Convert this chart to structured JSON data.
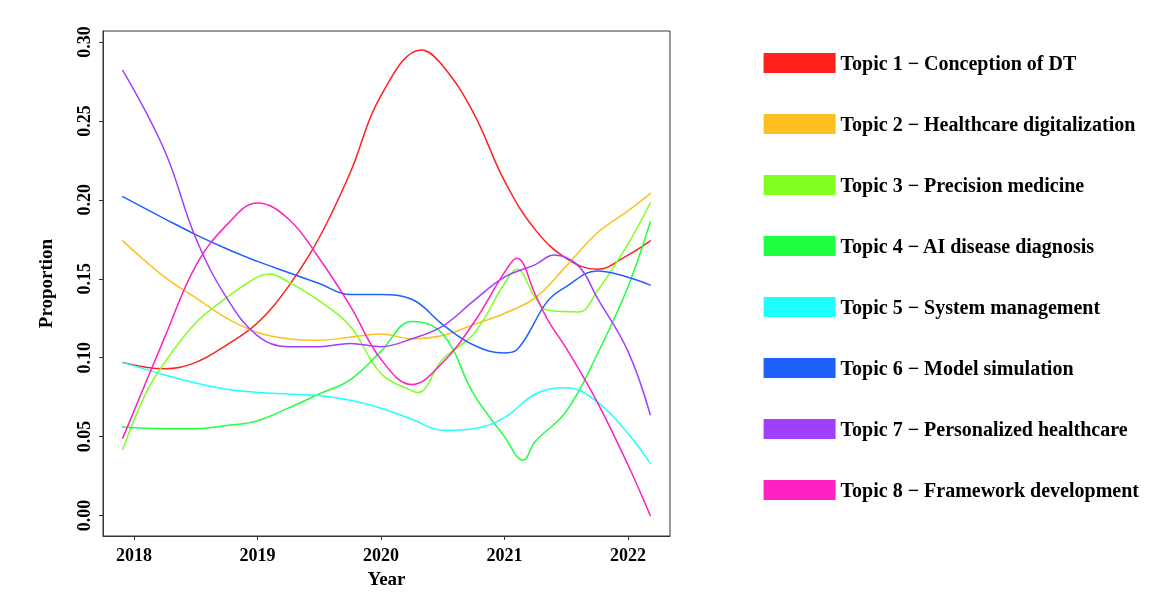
{
  "chart_data": {
    "type": "line",
    "xlabel": "Year",
    "ylabel": "Proportion",
    "xlim": [
      2017.75,
      2022.34
    ],
    "xticks": [
      2018,
      2019,
      2020,
      2021,
      2022
    ],
    "ylim": [
      -0.013,
      0.307
    ],
    "yticks": [
      {
        "value": 0,
        "label": "0.00"
      },
      {
        "value": 0.05,
        "label": "0.05"
      },
      {
        "value": 0.1,
        "label": "0.10"
      },
      {
        "value": 0.15,
        "label": "0.15"
      },
      {
        "value": 0.2,
        "label": "0.20"
      },
      {
        "value": 0.25,
        "label": "0.25"
      },
      {
        "value": 0.3,
        "label": "0.30"
      }
    ],
    "grid": false,
    "legend": "right",
    "marker": "none",
    "line_style": "solid",
    "series": [
      {
        "name": "Topic 1 − Conception of DT",
        "color": "#ff2020",
        "x": [
          2017.91,
          2018.25,
          2018.5,
          2018.75,
          2019,
          2019.25,
          2019.5,
          2019.75,
          2020,
          2020.33,
          2020.5,
          2020.75,
          2021,
          2021.25,
          2021.5,
          2021.75,
          2022,
          2022.18
        ],
        "values": [
          0.097,
          0.093,
          0.097,
          0.108,
          0.122,
          0.145,
          0.176,
          0.217,
          0.266,
          0.295,
          0.285,
          0.255,
          0.212,
          0.181,
          0.163,
          0.156,
          0.165,
          0.174
        ]
      },
      {
        "name": "Topic 2 − Healthcare digitalization",
        "color": "#ffbf20",
        "x": [
          2017.91,
          2018.25,
          2018.5,
          2018.75,
          2019,
          2019.25,
          2019.5,
          2019.75,
          2020,
          2020.25,
          2020.5,
          2020.75,
          2021,
          2021.25,
          2021.5,
          2021.75,
          2022,
          2022.18
        ],
        "values": [
          0.174,
          0.151,
          0.138,
          0.125,
          0.116,
          0.112,
          0.111,
          0.113,
          0.115,
          0.112,
          0.114,
          0.121,
          0.128,
          0.138,
          0.158,
          0.179,
          0.193,
          0.204
        ]
      },
      {
        "name": "Topic 3 − Precision medicine",
        "color": "#80ff20",
        "x": [
          2017.91,
          2018.1,
          2018.25,
          2018.5,
          2018.75,
          2019,
          2019.1,
          2019.25,
          2019.5,
          2019.75,
          2020,
          2020.25,
          2020.3,
          2020.5,
          2020.75,
          2021,
          2021.1,
          2021.25,
          2021.35,
          2021.6,
          2021.75,
          2022,
          2022.18
        ],
        "values": [
          0.042,
          0.078,
          0.097,
          0.122,
          0.138,
          0.151,
          0.153,
          0.148,
          0.136,
          0.12,
          0.09,
          0.079,
          0.078,
          0.099,
          0.115,
          0.147,
          0.156,
          0.138,
          0.13,
          0.129,
          0.142,
          0.172,
          0.198
        ]
      },
      {
        "name": "Topic 4 − AI disease diagnosis",
        "color": "#20ff40",
        "x": [
          2017.91,
          2018.25,
          2018.5,
          2018.75,
          2019,
          2019.25,
          2019.5,
          2019.75,
          2020,
          2020.25,
          2020.5,
          2020.75,
          2021,
          2021.15,
          2021.25,
          2021.5,
          2021.75,
          2022,
          2022.18
        ],
        "values": [
          0.056,
          0.055,
          0.055,
          0.057,
          0.06,
          0.068,
          0.077,
          0.086,
          0.104,
          0.123,
          0.115,
          0.077,
          0.05,
          0.035,
          0.047,
          0.066,
          0.102,
          0.145,
          0.186
        ]
      },
      {
        "name": "Topic 5 − System management",
        "color": "#20ffff",
        "x": [
          2017.91,
          2018.25,
          2018.5,
          2018.75,
          2019,
          2019.25,
          2019.5,
          2019.75,
          2020,
          2020.25,
          2020.5,
          2020.75,
          2021,
          2021.25,
          2021.5,
          2021.75,
          2022,
          2022.18
        ],
        "values": [
          0.097,
          0.089,
          0.084,
          0.08,
          0.078,
          0.077,
          0.076,
          0.073,
          0.068,
          0.061,
          0.054,
          0.055,
          0.062,
          0.077,
          0.081,
          0.072,
          0.052,
          0.033
        ]
      },
      {
        "name": "Topic 6 − Model simulation",
        "color": "#2060ff",
        "x": [
          2017.91,
          2018.25,
          2018.5,
          2018.75,
          2019,
          2019.25,
          2019.5,
          2019.75,
          2020,
          2020.25,
          2020.5,
          2020.75,
          2021,
          2021.1,
          2021.35,
          2021.5,
          2021.75,
          2022,
          2022.18
        ],
        "values": [
          0.202,
          0.188,
          0.178,
          0.169,
          0.161,
          0.154,
          0.147,
          0.14,
          0.14,
          0.137,
          0.121,
          0.108,
          0.103,
          0.105,
          0.136,
          0.145,
          0.155,
          0.151,
          0.146
        ]
      },
      {
        "name": "Topic 7 − Personalized healthcare",
        "color": "#a040ff",
        "x": [
          2017.91,
          2018.25,
          2018.5,
          2018.75,
          2019,
          2019.25,
          2019.5,
          2019.75,
          2020,
          2020.25,
          2020.5,
          2020.75,
          2021,
          2021.25,
          2021.4,
          2021.6,
          2021.75,
          2022,
          2022.18
        ],
        "values": [
          0.282,
          0.231,
          0.176,
          0.138,
          0.114,
          0.107,
          0.107,
          0.109,
          0.107,
          0.112,
          0.12,
          0.136,
          0.151,
          0.159,
          0.165,
          0.158,
          0.138,
          0.104,
          0.064
        ]
      },
      {
        "name": "Topic 8 − Framework development",
        "color": "#ff20c0",
        "x": [
          2017.91,
          2018.25,
          2018.5,
          2018.75,
          2019,
          2019.25,
          2019.5,
          2019.75,
          2020,
          2020.25,
          2020.5,
          2020.75,
          2021,
          2021.1,
          2021.25,
          2021.35,
          2021.5,
          2021.75,
          2022,
          2022.18
        ],
        "values": [
          0.049,
          0.113,
          0.158,
          0.184,
          0.198,
          0.188,
          0.163,
          0.133,
          0.099,
          0.083,
          0.097,
          0.122,
          0.154,
          0.163,
          0.14,
          0.124,
          0.106,
          0.072,
          0.032,
          0
        ]
      }
    ]
  }
}
